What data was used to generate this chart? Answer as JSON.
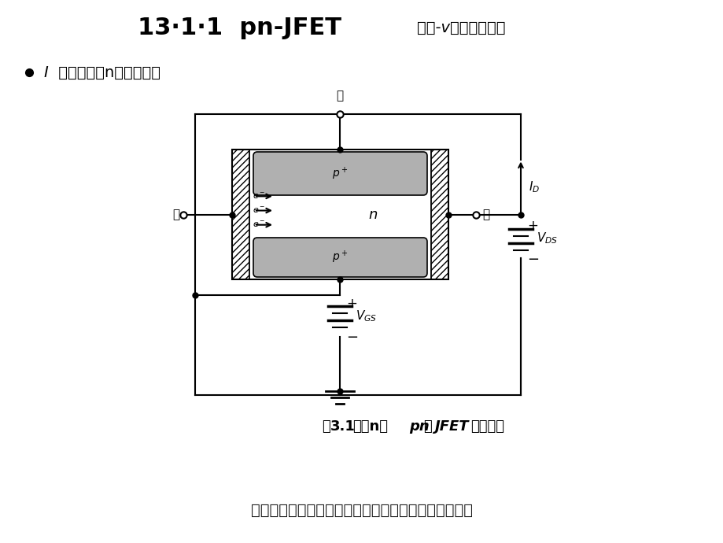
{
  "title_main": "13·1·1  pn-JFET",
  "title_sub": "漏源-v特性定性分析",
  "bullet_label": "I",
  "bullet_text": " 的形成：（n沟耗尽型）",
  "gate_label": "栅",
  "source_label": "源",
  "drain_label": "漏",
  "n_label": "n",
  "fig_cap_normal1": "图",
  "fig_cap_bold1": "3.1",
  "fig_cap_normal2": "对称",
  "fig_cap_bold2": "n",
  "fig_cap_normal3": "沟",
  "fig_cap_bold3": "pn",
  "fig_cap_normal4": "结",
  "fig_cap_bold4": "JFET",
  "fig_cap_normal5": "的横截面",
  "bottom_text": "漏源电压在沟道区产生电场，使多子从源极流向漏极。",
  "bg_color": "#ffffff",
  "p_color": "#b0b0b0",
  "hatch_color": "#000000"
}
